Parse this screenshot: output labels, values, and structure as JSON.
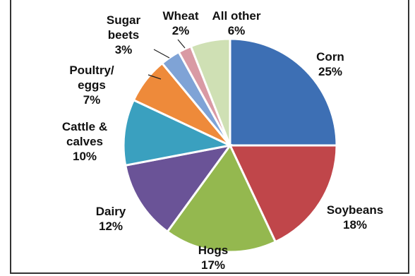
{
  "chart_data": {
    "type": "pie",
    "title": "",
    "slices": [
      {
        "label": "Corn",
        "value": 25,
        "pct_text": "25%",
        "color": "#3d6fb4"
      },
      {
        "label": "Soybeans",
        "value": 18,
        "pct_text": "18%",
        "color": "#c0464a"
      },
      {
        "label": "Hogs",
        "value": 17,
        "pct_text": "17%",
        "color": "#94b84f"
      },
      {
        "label": "Dairy",
        "value": 12,
        "pct_text": "12%",
        "color": "#6a5397"
      },
      {
        "label": "Cattle & calves",
        "value": 10,
        "pct_text": "10%",
        "color": "#3aa0bf"
      },
      {
        "label": "Poultry/ eggs",
        "value": 7,
        "pct_text": "7%",
        "color": "#ee8a3a"
      },
      {
        "label": "Sugar beets",
        "value": 3,
        "pct_text": "3%",
        "color": "#7fa3d6"
      },
      {
        "label": "Wheat",
        "value": 2,
        "pct_text": "2%",
        "color": "#d99aa4"
      },
      {
        "label": "All other",
        "value": 6,
        "pct_text": "6%",
        "color": "#cfe0b4"
      }
    ],
    "label_lines": [
      [
        "Corn",
        "25%"
      ],
      [
        "Soybeans",
        "18%"
      ],
      [
        "Hogs",
        "17%"
      ],
      [
        "Dairy",
        "12%"
      ],
      [
        "Cattle &",
        "calves",
        "10%"
      ],
      [
        "Poultry/",
        "eggs",
        "7%"
      ],
      [
        "Sugar",
        "beets",
        "3%"
      ],
      [
        "Wheat",
        "2%"
      ],
      [
        "All other",
        "6%"
      ]
    ]
  }
}
